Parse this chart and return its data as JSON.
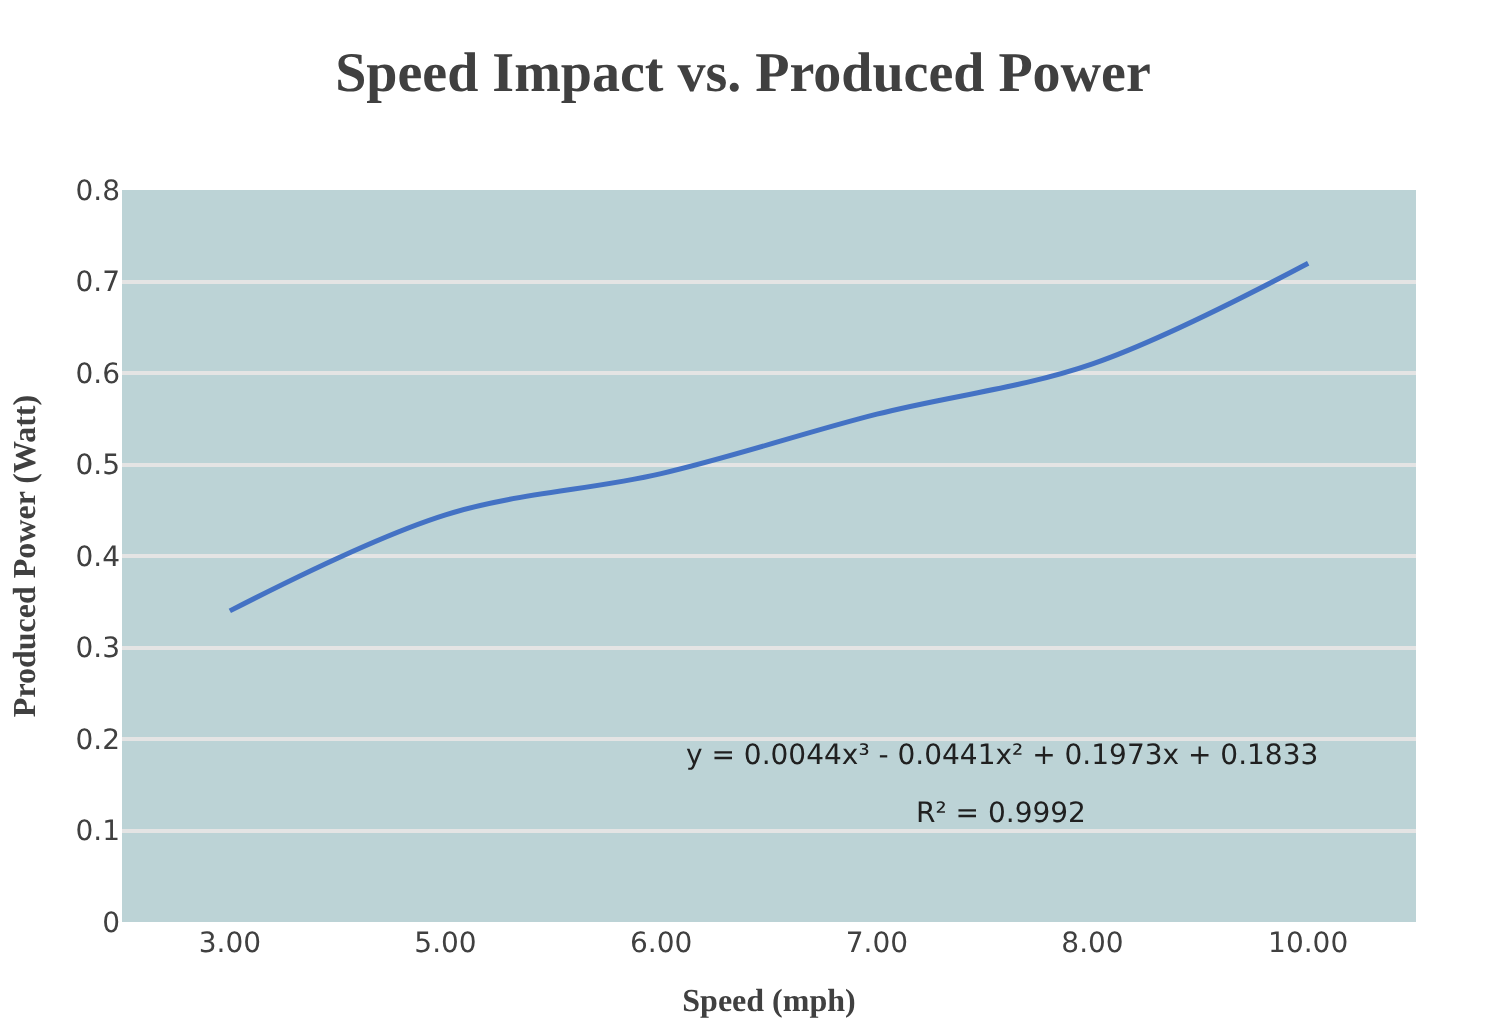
{
  "chart_data": {
    "type": "line",
    "title": "Speed Impact vs. Produced Power",
    "xlabel": "Speed (mph)",
    "ylabel": "Produced Power (Watt)",
    "categories": [
      "3.00",
      "5.00",
      "6.00",
      "7.00",
      "8.00",
      "10.00"
    ],
    "series": [
      {
        "color": "#4472c4",
        "values": [
          0.34,
          0.445,
          0.49,
          0.555,
          0.61,
          0.72
        ]
      }
    ],
    "ylim": [
      0,
      0.8
    ],
    "yticks": [
      {
        "value": 0,
        "label": "0"
      },
      0.1,
      0.2,
      0.3,
      0.4,
      0.5,
      0.6,
      0.7,
      0.8
    ],
    "grid": "y",
    "marker": "none",
    "line_style": "solid",
    "annotations": [
      "y = 0.0044x³ - 0.0441x² + 0.1973x + 0.1833",
      "R² = 0.9992"
    ]
  }
}
